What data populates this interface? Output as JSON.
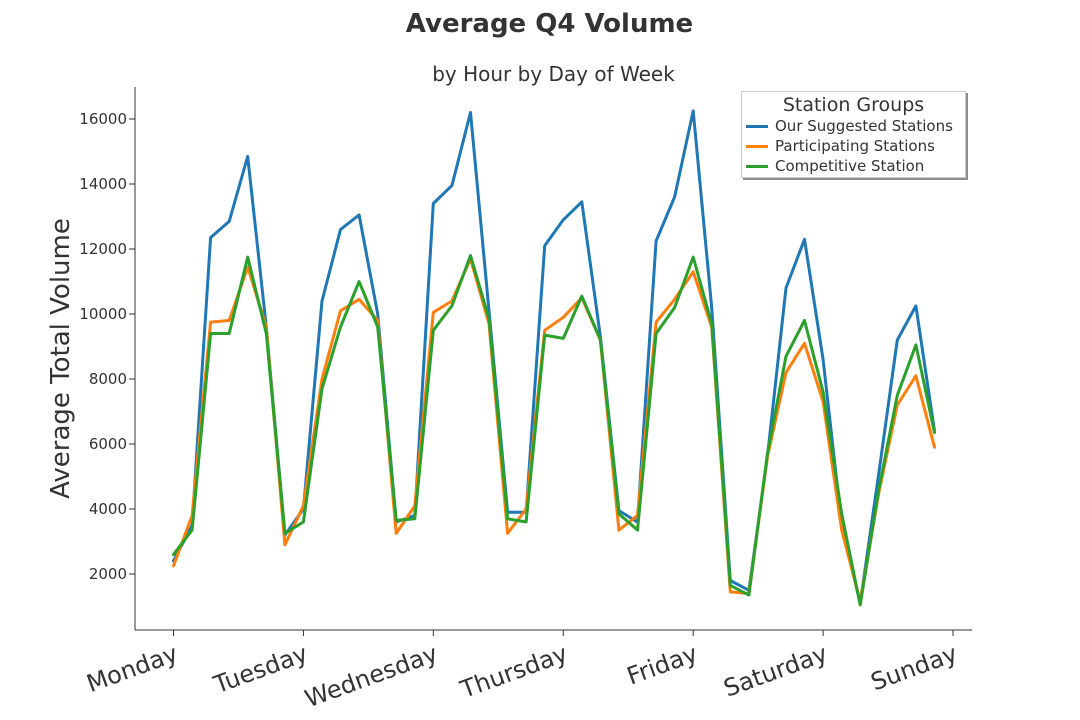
{
  "chart_data": {
    "type": "line",
    "title": "Average Q4 Volume",
    "subtitle": "by Hour by Day of Week",
    "ylabel": "Average Total Volume",
    "xlabel": "",
    "xlim": [
      -2,
      84
    ],
    "ylim": [
      300,
      17100
    ],
    "yticks": [
      2000,
      4000,
      6000,
      8000,
      10000,
      12000,
      14000,
      16000
    ],
    "xticks": [
      {
        "pos": 0,
        "label": "Monday"
      },
      {
        "pos": 14,
        "label": "Tuesday"
      },
      {
        "pos": 28,
        "label": "Wednesday"
      },
      {
        "pos": 42,
        "label": "Thursday"
      },
      {
        "pos": 56,
        "label": "Friday"
      },
      {
        "pos": 70,
        "label": "Saturday"
      },
      {
        "pos": 84,
        "label": "Sunday"
      }
    ],
    "grid": false,
    "legend": {
      "title": "Station Groups",
      "placement": "top-right"
    },
    "x": [
      0,
      2,
      4,
      6,
      8,
      10,
      12,
      14,
      16,
      18,
      20,
      22,
      24,
      26,
      28,
      30,
      32,
      34,
      36,
      38,
      40,
      42,
      44,
      46,
      48,
      50,
      52,
      54,
      56,
      58,
      60,
      62,
      64,
      66,
      68,
      70,
      72,
      74,
      76,
      78,
      80,
      82
    ],
    "series": [
      {
        "name": "Our Suggested Stations",
        "color": "#1f77b4",
        "values": [
          2400,
          3500,
          12350,
          12850,
          14850,
          9600,
          3200,
          4000,
          10400,
          12600,
          13050,
          10000,
          3600,
          3800,
          13400,
          13950,
          16200,
          10100,
          3900,
          3900,
          12100,
          12900,
          13450,
          9300,
          3950,
          3600,
          12250,
          13600,
          16250,
          10200,
          1800,
          1500,
          5600,
          10800,
          12300,
          8600,
          3500,
          1100,
          5100,
          9200,
          10250,
          6400
        ]
      },
      {
        "name": "Participating Stations",
        "color": "#ff7f0e",
        "values": [
          2250,
          3800,
          9750,
          9800,
          11450,
          9600,
          2900,
          4100,
          8000,
          10100,
          10450,
          9800,
          3250,
          4100,
          10050,
          10400,
          11700,
          9700,
          3250,
          4000,
          9500,
          9900,
          10500,
          9200,
          3350,
          3800,
          9750,
          10450,
          11300,
          9600,
          1450,
          1400,
          5600,
          8200,
          9100,
          7300,
          3350,
          1150,
          4500,
          7200,
          8100,
          5900
        ]
      },
      {
        "name": "Competitive Station",
        "color": "#2ca02c",
        "values": [
          2600,
          3350,
          9400,
          9400,
          11750,
          9400,
          3250,
          3600,
          7700,
          9600,
          11000,
          9600,
          3650,
          3700,
          9500,
          10250,
          11800,
          9850,
          3700,
          3600,
          9350,
          9250,
          10550,
          9200,
          3850,
          3350,
          9400,
          10200,
          11750,
          9700,
          1650,
          1350,
          5700,
          8700,
          9800,
          7600,
          3850,
          1050,
          4600,
          7500,
          9050,
          6350
        ]
      }
    ]
  }
}
